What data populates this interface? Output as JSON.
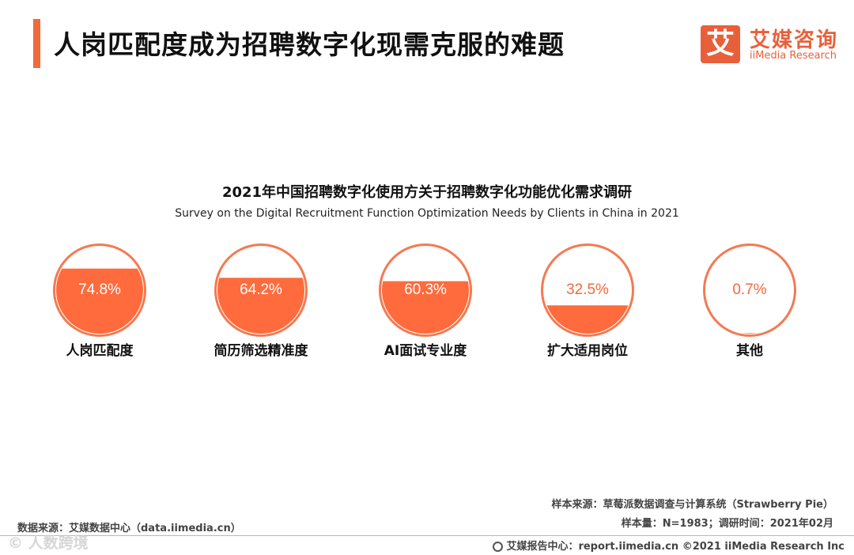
{
  "header": {
    "title": "人岗匹配度成为招聘数字化现需克服的难题",
    "logo_mark": "艾",
    "logo_cn": "艾媒咨询",
    "logo_en": "iiMedia Research"
  },
  "chart_data": {
    "type": "bar",
    "title": "2021年中国招聘数字化使用方关于招聘数字化功能优化需求调研",
    "subtitle": "Survey on  the  Digital Recruitment Function Optimization Needs by Clients in China in 2021",
    "categories": [
      "人岗匹配度",
      "简历筛选精准度",
      "AI面试专业度",
      "扩大适用岗位",
      "其他"
    ],
    "values": [
      74.8,
      64.2,
      60.3,
      32.5,
      0.7
    ],
    "value_labels": [
      "74.8%",
      "64.2%",
      "60.3%",
      "32.5%",
      "0.7%"
    ],
    "unit": "%",
    "ylim": [
      0,
      100
    ],
    "colors": {
      "fill": "#ff6b3d",
      "outline": "#f47a52",
      "label_on_fill": "#ffffff",
      "label_on_white": "#f06a3c"
    }
  },
  "footer": {
    "source_left": "数据来源：艾媒数据中心（data.iimedia.cn）",
    "sample_source": "样本来源：草莓派数据调查与计算系统（Strawberry  Pie）",
    "sample_size": "样本量：N=1983；调研时间：2021年02月",
    "report_center": "艾媒报告中心：report.iimedia.cn   ©2021  iiMedia Research  Inc",
    "watermark": "© 人数跨境"
  }
}
